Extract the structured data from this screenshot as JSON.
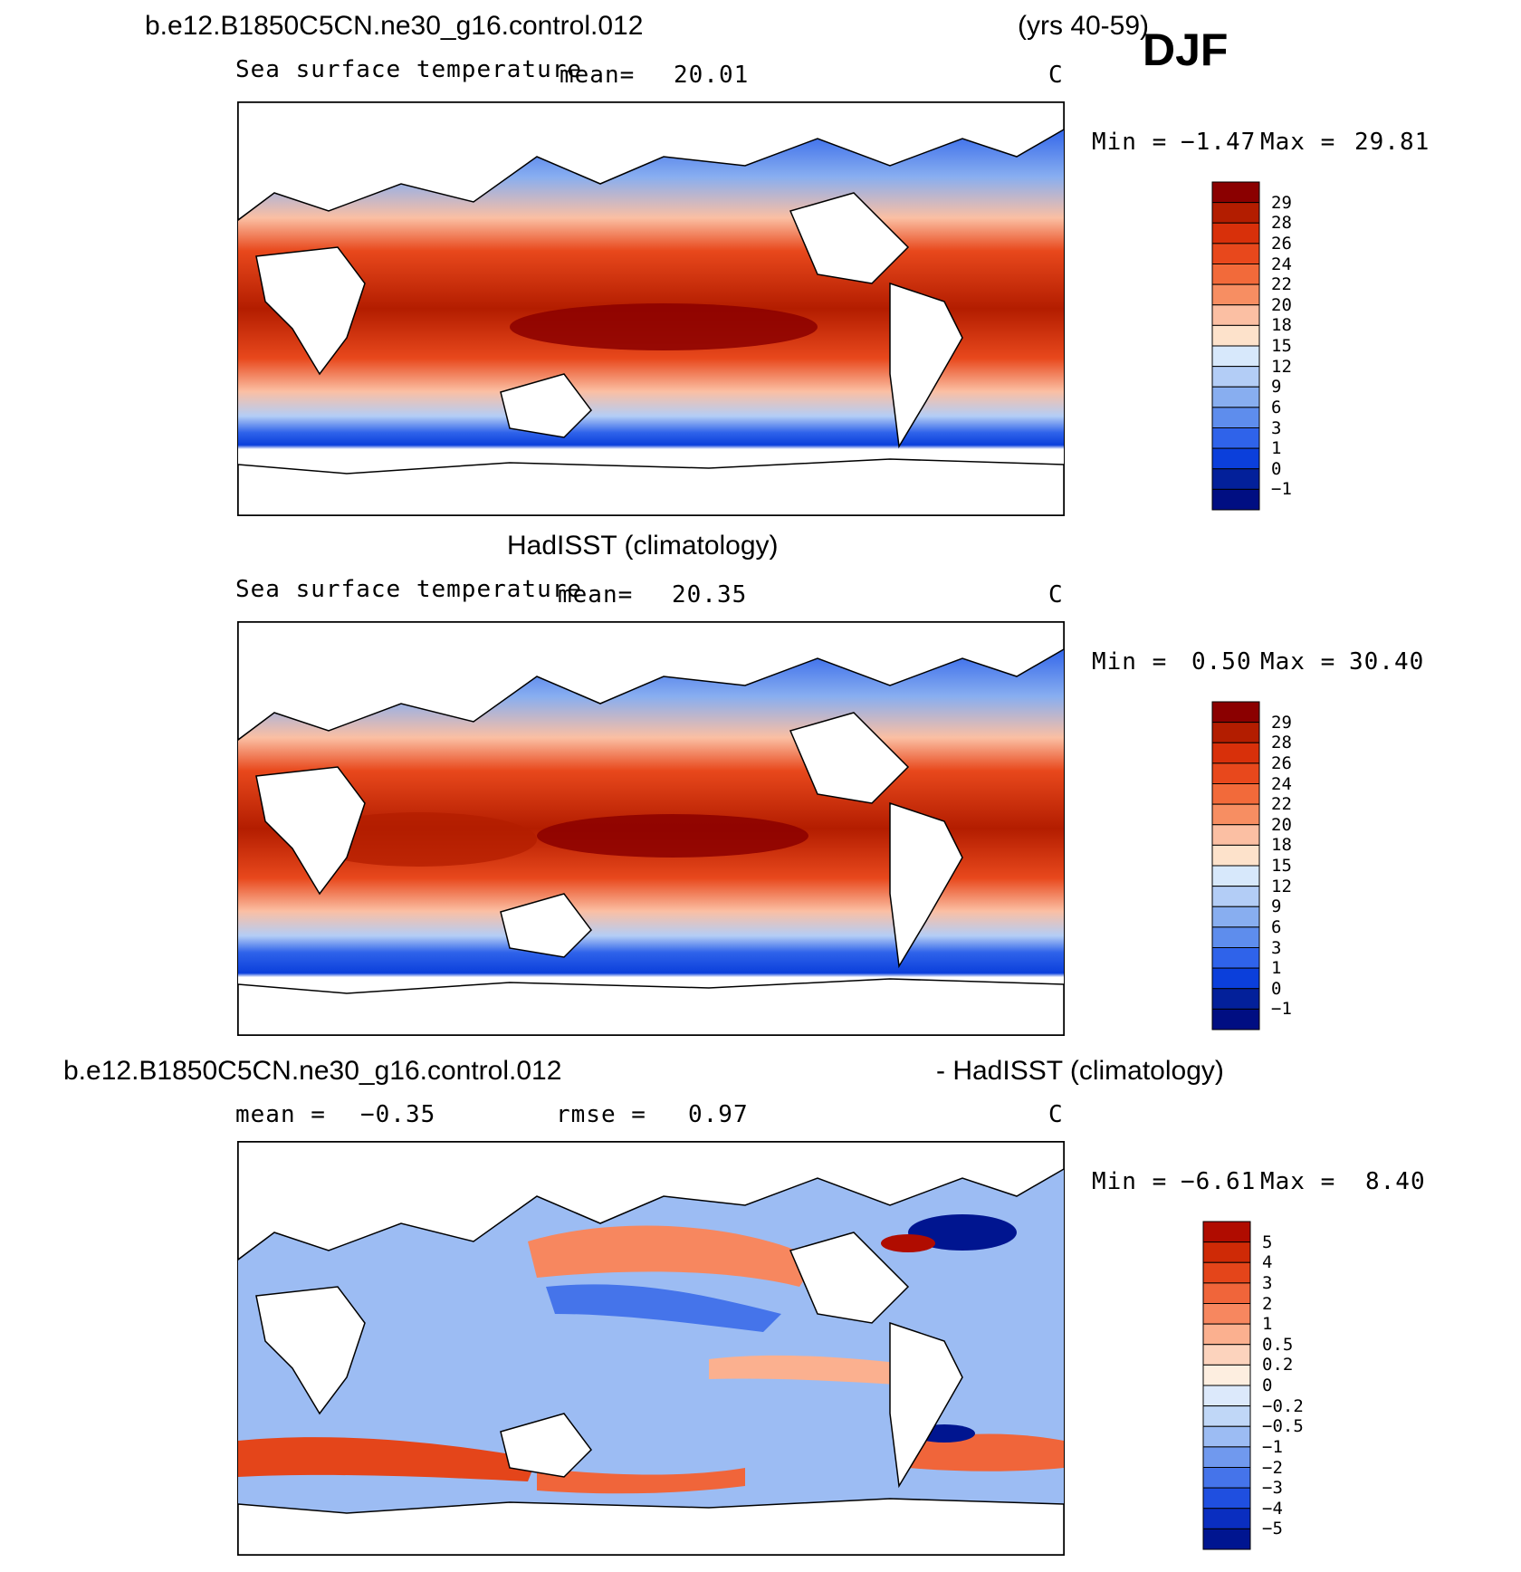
{
  "header": {
    "case_name": "b.e12.B1850C5CN.ne30_g16.control.012",
    "years": "(yrs 40-59)",
    "season": "DJF"
  },
  "panels": [
    {
      "id": "model",
      "title": "",
      "variable": "Sea surface temperature",
      "mean_label": "mean=",
      "mean_value": "20.01",
      "units": "C",
      "min_label": "Min =",
      "min_value": "−1.47",
      "max_label": "Max =",
      "max_value": "29.81",
      "levels": [
        "29",
        "28",
        "26",
        "24",
        "22",
        "20",
        "18",
        "15",
        "12",
        "9",
        "6",
        "3",
        "1",
        "0",
        "−1"
      ]
    },
    {
      "id": "obs",
      "title": "HadISST (climatology)",
      "variable": "Sea surface temperature",
      "mean_label": "mean=",
      "mean_value": "20.35",
      "units": "C",
      "min_label": "Min =",
      "min_value": "0.50",
      "max_label": "Max =",
      "max_value": "30.40",
      "levels": [
        "29",
        "28",
        "26",
        "24",
        "22",
        "20",
        "18",
        "15",
        "12",
        "9",
        "6",
        "3",
        "1",
        "0",
        "−1"
      ]
    },
    {
      "id": "diff",
      "title_left": "b.e12.B1850C5CN.ne30_g16.control.012",
      "title_right": "- HadISST (climatology)",
      "mean_label": "mean =",
      "mean_value": "−0.35",
      "rmse_label": "rmse =",
      "rmse_value": "0.97",
      "units": "C",
      "min_label": "Min =",
      "min_value": "−6.61",
      "max_label": "Max =",
      "max_value": "8.40",
      "levels": [
        "5",
        "4",
        "3",
        "2",
        "1",
        "0.5",
        "0.2",
        "0",
        "−0.2",
        "−0.5",
        "−1",
        "−2",
        "−3",
        "−4",
        "−5"
      ]
    }
  ],
  "colors": {
    "sst_scale": [
      "#8b0000",
      "#b31d00",
      "#d8300a",
      "#e8481c",
      "#f26a3a",
      "#f78e62",
      "#fbbfa3",
      "#fde2cb",
      "#d7e8fb",
      "#b3cdf6",
      "#88aef0",
      "#5e8ded",
      "#2f63ea",
      "#0b3fdb",
      "#03209a",
      "#000e82"
    ],
    "diff_scale": [
      "#b00c00",
      "#cf2a06",
      "#e4451a",
      "#f0653a",
      "#f7875f",
      "#fbb08f",
      "#fcd3bd",
      "#fdeee0",
      "#dce9fb",
      "#c0d7f7",
      "#9cbcf3",
      "#7099ee",
      "#4574ea",
      "#1f4fe0",
      "#0a2ec0",
      "#001590"
    ]
  }
}
